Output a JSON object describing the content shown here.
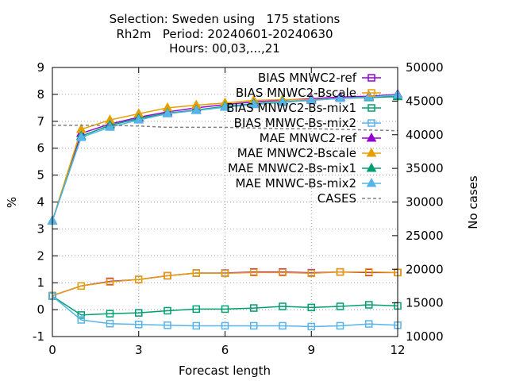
{
  "chart_data": {
    "type": "line",
    "title_lines": [
      "Selection: Sweden using   175 stations",
      "Rh2m   Period: 20240601-20240630",
      "Hours: 00,03,...,21"
    ],
    "xlabel": "Forecast length",
    "ylabel": "%",
    "y2label": "No cases",
    "xlim": [
      0,
      12
    ],
    "ylim": [
      -1,
      9
    ],
    "y2lim": [
      10000,
      50000
    ],
    "xticks": [
      0,
      3,
      6,
      9,
      12
    ],
    "yticks": [
      -1,
      0,
      1,
      2,
      3,
      4,
      5,
      6,
      7,
      8,
      9
    ],
    "y2ticks": [
      10000,
      15000,
      20000,
      25000,
      30000,
      35000,
      40000,
      45000,
      50000
    ],
    "grid": true,
    "legend_position": "top-right",
    "x": [
      0,
      1,
      2,
      3,
      4,
      5,
      6,
      7,
      8,
      9,
      10,
      11,
      12
    ],
    "series": [
      {
        "name": "BIAS MNWC2-ref",
        "color": "#9400d3",
        "marker": "square-open",
        "values": [
          0.52,
          0.88,
          1.05,
          1.12,
          1.26,
          1.36,
          1.36,
          1.4,
          1.4,
          1.37,
          1.4,
          1.38,
          1.38
        ]
      },
      {
        "name": "BIAS MNWC2-Bscale",
        "color": "#e69f00",
        "marker": "square-open",
        "values": [
          0.52,
          0.88,
          1.03,
          1.12,
          1.26,
          1.36,
          1.35,
          1.38,
          1.38,
          1.35,
          1.4,
          1.4,
          1.38
        ]
      },
      {
        "name": "BIAS MNWC2-Bs-mix1",
        "color": "#009e73",
        "marker": "square-open",
        "values": [
          0.5,
          -0.2,
          -0.15,
          -0.12,
          -0.04,
          0.02,
          0.02,
          0.06,
          0.12,
          0.08,
          0.12,
          0.18,
          0.14
        ]
      },
      {
        "name": "BIAS MNWC-Bs-mix2",
        "color": "#56b4e9",
        "marker": "square-open",
        "values": [
          0.5,
          -0.38,
          -0.52,
          -0.55,
          -0.58,
          -0.6,
          -0.6,
          -0.6,
          -0.6,
          -0.63,
          -0.6,
          -0.53,
          -0.58
        ]
      },
      {
        "name": "MAE MNWC2-ref",
        "color": "#9400d3",
        "marker": "triangle-filled",
        "values": [
          3.3,
          6.55,
          6.9,
          7.15,
          7.35,
          7.5,
          7.62,
          7.72,
          7.78,
          7.84,
          7.9,
          7.93,
          8.0
        ]
      },
      {
        "name": "MAE MNWC2-Bscale",
        "color": "#e69f00",
        "marker": "triangle-filled",
        "values": [
          3.3,
          6.7,
          7.05,
          7.28,
          7.5,
          7.6,
          7.68,
          7.78,
          7.8,
          7.8,
          7.85,
          7.9,
          7.92
        ]
      },
      {
        "name": "MAE MNWC2-Bs-mix1",
        "color": "#009e73",
        "marker": "triangle-filled",
        "values": [
          3.3,
          6.45,
          6.85,
          7.1,
          7.3,
          7.42,
          7.55,
          7.65,
          7.72,
          7.78,
          7.85,
          7.88,
          7.92
        ]
      },
      {
        "name": "MAE MNWC-Bs-mix2",
        "color": "#56b4e9",
        "marker": "triangle-filled",
        "values": [
          3.3,
          6.4,
          6.78,
          7.05,
          7.28,
          7.4,
          7.52,
          7.62,
          7.7,
          7.78,
          7.85,
          7.9,
          7.98
        ]
      },
      {
        "name": "CASES",
        "color": "#808080",
        "marker": "none",
        "dashed": true,
        "axis": "y2",
        "values": [
          41400,
          41400,
          41400,
          41300,
          41100,
          41100,
          41100,
          41000,
          40900,
          40900,
          40800,
          40700,
          40600
        ]
      }
    ]
  }
}
